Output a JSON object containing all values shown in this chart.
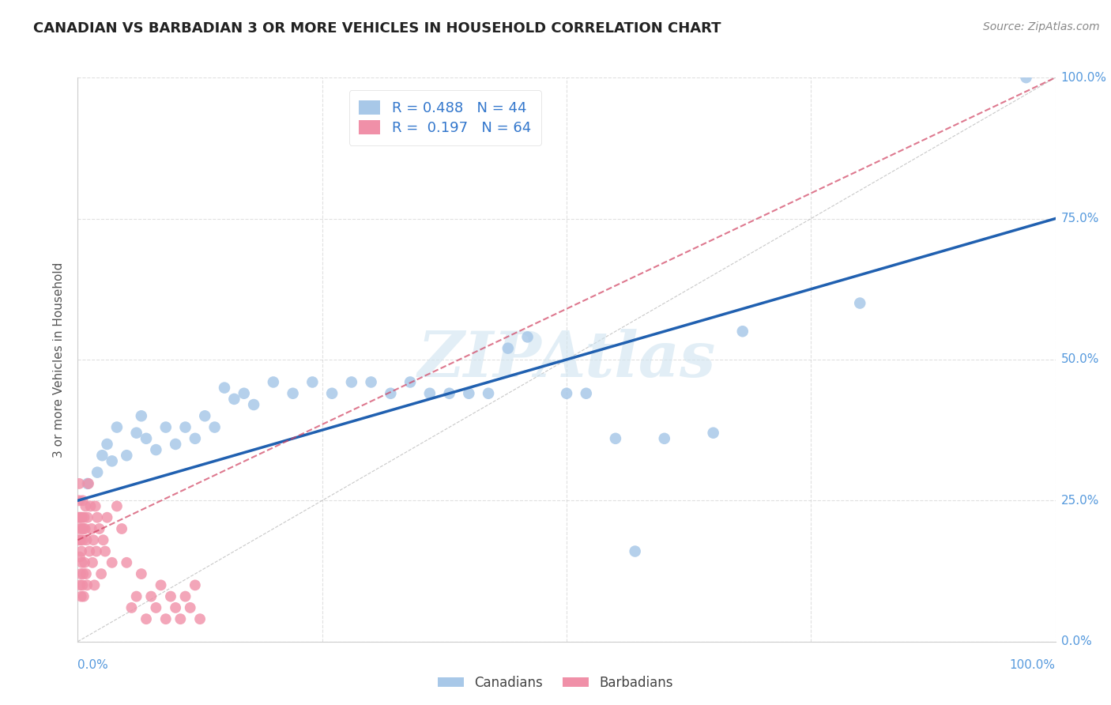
{
  "title": "CANADIAN VS BARBADIAN 3 OR MORE VEHICLES IN HOUSEHOLD CORRELATION CHART",
  "source": "Source: ZipAtlas.com",
  "ylabel": "3 or more Vehicles in Household",
  "watermark": "ZIPAtlas",
  "legend_canadian_R": "0.488",
  "legend_canadian_N": "44",
  "legend_barbadian_R": "0.197",
  "legend_barbadian_N": "64",
  "canadian_color": "#a8c8e8",
  "barbadian_color": "#f090a8",
  "canadian_line_color": "#2060b0",
  "barbadian_line_color": "#d04060",
  "canadian_line_y0": 25.0,
  "canadian_line_y1": 75.0,
  "barbadian_line_y0": 18.0,
  "barbadian_line_y1": 100.0,
  "canadian_points": [
    [
      1.0,
      28.0
    ],
    [
      2.0,
      30.0
    ],
    [
      2.5,
      33.0
    ],
    [
      3.0,
      35.0
    ],
    [
      3.5,
      32.0
    ],
    [
      4.0,
      38.0
    ],
    [
      5.0,
      33.0
    ],
    [
      6.0,
      37.0
    ],
    [
      6.5,
      40.0
    ],
    [
      7.0,
      36.0
    ],
    [
      8.0,
      34.0
    ],
    [
      9.0,
      38.0
    ],
    [
      10.0,
      35.0
    ],
    [
      11.0,
      38.0
    ],
    [
      12.0,
      36.0
    ],
    [
      13.0,
      40.0
    ],
    [
      14.0,
      38.0
    ],
    [
      15.0,
      45.0
    ],
    [
      16.0,
      43.0
    ],
    [
      17.0,
      44.0
    ],
    [
      18.0,
      42.0
    ],
    [
      20.0,
      46.0
    ],
    [
      22.0,
      44.0
    ],
    [
      24.0,
      46.0
    ],
    [
      26.0,
      44.0
    ],
    [
      28.0,
      46.0
    ],
    [
      30.0,
      46.0
    ],
    [
      32.0,
      44.0
    ],
    [
      34.0,
      46.0
    ],
    [
      36.0,
      44.0
    ],
    [
      38.0,
      44.0
    ],
    [
      40.0,
      44.0
    ],
    [
      42.0,
      44.0
    ],
    [
      44.0,
      52.0
    ],
    [
      46.0,
      54.0
    ],
    [
      50.0,
      44.0
    ],
    [
      52.0,
      44.0
    ],
    [
      55.0,
      36.0
    ],
    [
      57.0,
      16.0
    ],
    [
      60.0,
      36.0
    ],
    [
      65.0,
      37.0
    ],
    [
      68.0,
      55.0
    ],
    [
      80.0,
      60.0
    ],
    [
      97.0,
      100.0
    ]
  ],
  "barbadian_points": [
    [
      0.08,
      22.0
    ],
    [
      0.1,
      18.0
    ],
    [
      0.12,
      25.0
    ],
    [
      0.15,
      28.0
    ],
    [
      0.18,
      20.0
    ],
    [
      0.2,
      15.0
    ],
    [
      0.22,
      22.0
    ],
    [
      0.25,
      10.0
    ],
    [
      0.28,
      18.0
    ],
    [
      0.3,
      12.0
    ],
    [
      0.32,
      22.0
    ],
    [
      0.35,
      8.0
    ],
    [
      0.38,
      16.0
    ],
    [
      0.4,
      20.0
    ],
    [
      0.42,
      14.0
    ],
    [
      0.45,
      22.0
    ],
    [
      0.48,
      10.0
    ],
    [
      0.5,
      25.0
    ],
    [
      0.52,
      18.0
    ],
    [
      0.55,
      12.0
    ],
    [
      0.58,
      20.0
    ],
    [
      0.6,
      8.0
    ],
    [
      0.65,
      22.0
    ],
    [
      0.7,
      14.0
    ],
    [
      0.75,
      20.0
    ],
    [
      0.8,
      24.0
    ],
    [
      0.85,
      12.0
    ],
    [
      0.9,
      18.0
    ],
    [
      0.95,
      10.0
    ],
    [
      1.0,
      22.0
    ],
    [
      1.1,
      28.0
    ],
    [
      1.2,
      16.0
    ],
    [
      1.3,
      24.0
    ],
    [
      1.4,
      20.0
    ],
    [
      1.5,
      14.0
    ],
    [
      1.6,
      18.0
    ],
    [
      1.7,
      10.0
    ],
    [
      1.8,
      24.0
    ],
    [
      1.9,
      16.0
    ],
    [
      2.0,
      22.0
    ],
    [
      2.2,
      20.0
    ],
    [
      2.4,
      12.0
    ],
    [
      2.6,
      18.0
    ],
    [
      2.8,
      16.0
    ],
    [
      3.0,
      22.0
    ],
    [
      3.5,
      14.0
    ],
    [
      4.0,
      24.0
    ],
    [
      4.5,
      20.0
    ],
    [
      5.0,
      14.0
    ],
    [
      5.5,
      6.0
    ],
    [
      6.0,
      8.0
    ],
    [
      6.5,
      12.0
    ],
    [
      7.0,
      4.0
    ],
    [
      7.5,
      8.0
    ],
    [
      8.0,
      6.0
    ],
    [
      8.5,
      10.0
    ],
    [
      9.0,
      4.0
    ],
    [
      9.5,
      8.0
    ],
    [
      10.0,
      6.0
    ],
    [
      10.5,
      4.0
    ],
    [
      11.0,
      8.0
    ],
    [
      11.5,
      6.0
    ],
    [
      12.0,
      10.0
    ],
    [
      12.5,
      4.0
    ]
  ],
  "xlim": [
    0,
    100
  ],
  "ylim": [
    0,
    100
  ],
  "background_color": "#ffffff",
  "grid_color": "#cccccc",
  "tick_color": "#5599dd",
  "title_color": "#222222",
  "source_color": "#888888",
  "ylabel_color": "#555555"
}
